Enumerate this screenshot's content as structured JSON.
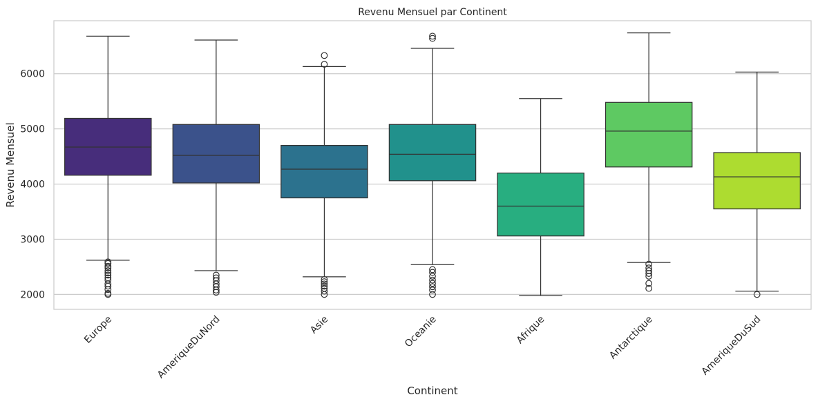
{
  "chart_data": {
    "type": "box",
    "title": "Revenu Mensuel par Continent",
    "xlabel": "Continent",
    "ylabel": "Revenu Mensuel",
    "ylim": [
      1730,
      6960
    ],
    "yticks": [
      2000,
      3000,
      4000,
      5000,
      6000
    ],
    "grid": "y",
    "categories": [
      "Europe",
      "AmeriqueDuNord",
      "Asie",
      "Oceanie",
      "Afrique",
      "Antarctique",
      "AmeriqueDuSud"
    ],
    "boxes": [
      {
        "category": "Europe",
        "whisker_low": 2620,
        "q1": 4160,
        "median": 4670,
        "q3": 5190,
        "whisker_high": 6680,
        "outliers": [
          2000,
          2020,
          2090,
          2150,
          2190,
          2260,
          2300,
          2350,
          2390,
          2430,
          2480,
          2510,
          2560,
          2590
        ],
        "color": "#472d7b"
      },
      {
        "category": "AmeriqueDuNord",
        "whisker_low": 2430,
        "q1": 4020,
        "median": 4520,
        "q3": 5080,
        "whisker_high": 6610,
        "outliers": [
          2040,
          2080,
          2140,
          2190,
          2250,
          2300,
          2350
        ],
        "color": "#3b528b"
      },
      {
        "category": "Asie",
        "whisker_low": 2320,
        "q1": 3750,
        "median": 4270,
        "q3": 4700,
        "whisker_high": 6130,
        "outliers": [
          6330,
          6170,
          2000,
          2060,
          2110,
          2150,
          2190,
          2230,
          2270
        ],
        "color": "#2c728e"
      },
      {
        "category": "Oceanie",
        "whisker_low": 2540,
        "q1": 4060,
        "median": 4540,
        "q3": 5080,
        "whisker_high": 6460,
        "outliers": [
          6680,
          6640,
          2000,
          2080,
          2140,
          2200,
          2260,
          2330,
          2400,
          2450
        ],
        "color": "#21918c"
      },
      {
        "category": "Afrique",
        "whisker_low": 1980,
        "q1": 3060,
        "median": 3600,
        "q3": 4200,
        "whisker_high": 5550,
        "outliers": [],
        "color": "#28ae80"
      },
      {
        "category": "Antarctique",
        "whisker_low": 2580,
        "q1": 4310,
        "median": 4960,
        "q3": 5480,
        "whisker_high": 6740,
        "outliers": [
          2110,
          2200,
          2330,
          2380,
          2430,
          2480,
          2550
        ],
        "color": "#5ec962"
      },
      {
        "category": "AmeriqueDuSud",
        "whisker_low": 2060,
        "q1": 3550,
        "median": 4130,
        "q3": 4570,
        "whisker_high": 6030,
        "outliers": [
          2000
        ],
        "color": "#addc30"
      }
    ],
    "colors": {
      "grid": "#cccccc",
      "frame": "#cccccc",
      "line": "#333333",
      "text": "#262626",
      "background": "#ffffff"
    }
  }
}
